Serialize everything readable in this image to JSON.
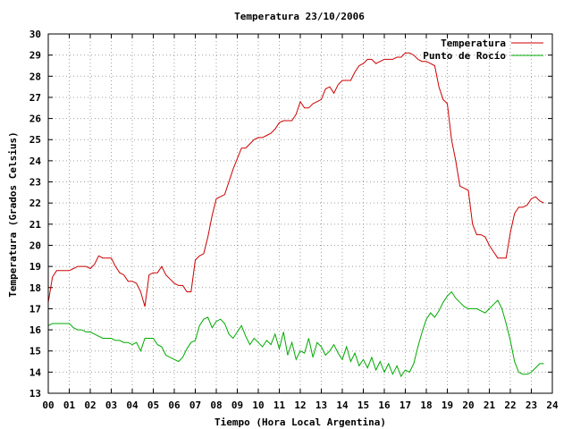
{
  "chart_data": {
    "type": "line",
    "title": "Temperatura 23/10/2006",
    "xlabel": "Tiempo (Hora Local Argentina)",
    "ylabel": "Temperatura (Grados Celsius)",
    "xlim": [
      0,
      24
    ],
    "ylim": [
      13,
      30
    ],
    "x_ticks": [
      "00",
      "01",
      "02",
      "03",
      "04",
      "05",
      "06",
      "07",
      "08",
      "09",
      "10",
      "11",
      "12",
      "13",
      "14",
      "15",
      "16",
      "17",
      "18",
      "19",
      "20",
      "21",
      "22",
      "23",
      "24"
    ],
    "y_ticks": [
      13,
      14,
      15,
      16,
      17,
      18,
      19,
      20,
      21,
      22,
      23,
      24,
      25,
      26,
      27,
      28,
      29,
      30
    ],
    "grid": true,
    "legend_position": "top-right",
    "series": [
      {
        "name": "Temperatura",
        "color": "#cc0000",
        "x": [
          0.0,
          0.2,
          0.4,
          0.6,
          0.8,
          1.0,
          1.2,
          1.4,
          1.6,
          1.8,
          2.0,
          2.2,
          2.4,
          2.6,
          2.8,
          3.0,
          3.2,
          3.4,
          3.6,
          3.8,
          4.0,
          4.2,
          4.4,
          4.6,
          4.8,
          5.0,
          5.2,
          5.4,
          5.6,
          5.8,
          6.0,
          6.2,
          6.4,
          6.6,
          6.8,
          7.0,
          7.2,
          7.4,
          7.6,
          7.8,
          8.0,
          8.2,
          8.4,
          8.6,
          8.8,
          9.0,
          9.2,
          9.4,
          9.6,
          9.8,
          10.0,
          10.2,
          10.4,
          10.6,
          10.8,
          11.0,
          11.2,
          11.4,
          11.6,
          11.8,
          12.0,
          12.2,
          12.4,
          12.6,
          12.8,
          13.0,
          13.2,
          13.4,
          13.6,
          13.8,
          14.0,
          14.2,
          14.4,
          14.6,
          14.8,
          15.0,
          15.2,
          15.4,
          15.6,
          15.8,
          16.0,
          16.2,
          16.4,
          16.6,
          16.8,
          17.0,
          17.2,
          17.4,
          17.6,
          17.8,
          18.0,
          18.2,
          18.4,
          18.6,
          18.8,
          19.0,
          19.2,
          19.4,
          19.6,
          19.8,
          20.0,
          20.2,
          20.4,
          20.6,
          20.8,
          21.0,
          21.2,
          21.4,
          21.6,
          21.8,
          22.0,
          22.2,
          22.4,
          22.6,
          22.8,
          23.0,
          23.2,
          23.4,
          23.6
        ],
        "values": [
          17.3,
          18.5,
          18.8,
          18.8,
          18.8,
          18.8,
          18.9,
          19.0,
          19.0,
          19.0,
          18.9,
          19.1,
          19.5,
          19.4,
          19.4,
          19.4,
          19.0,
          18.7,
          18.6,
          18.3,
          18.3,
          18.2,
          17.8,
          17.1,
          18.6,
          18.7,
          18.7,
          19.0,
          18.6,
          18.4,
          18.2,
          18.1,
          18.1,
          17.8,
          17.8,
          19.3,
          19.5,
          19.6,
          20.4,
          21.4,
          22.2,
          22.3,
          22.4,
          23.0,
          23.6,
          24.1,
          24.6,
          24.6,
          24.8,
          25.0,
          25.1,
          25.1,
          25.2,
          25.3,
          25.5,
          25.8,
          25.9,
          25.9,
          25.9,
          26.2,
          26.8,
          26.5,
          26.5,
          26.7,
          26.8,
          26.9,
          27.4,
          27.5,
          27.2,
          27.6,
          27.8,
          27.8,
          27.8,
          28.2,
          28.5,
          28.6,
          28.8,
          28.8,
          28.6,
          28.7,
          28.8,
          28.8,
          28.8,
          28.9,
          28.9,
          29.1,
          29.1,
          29.0,
          28.8,
          28.7,
          28.7,
          28.6,
          28.5,
          27.5,
          26.9,
          26.7,
          25.0,
          24.0,
          22.8,
          22.7,
          22.6,
          21.0,
          20.5,
          20.5,
          20.4,
          20.0,
          19.7,
          19.4,
          19.4,
          19.4,
          20.6,
          21.5,
          21.8,
          21.8,
          21.9,
          22.2,
          22.3,
          22.1,
          22.0
        ]
      },
      {
        "name": "Punto de Rocío",
        "color": "#00aa00",
        "x": [
          0.0,
          0.2,
          0.4,
          0.6,
          0.8,
          1.0,
          1.2,
          1.4,
          1.6,
          1.8,
          2.0,
          2.2,
          2.4,
          2.6,
          2.8,
          3.0,
          3.2,
          3.4,
          3.6,
          3.8,
          4.0,
          4.2,
          4.4,
          4.6,
          4.8,
          5.0,
          5.2,
          5.4,
          5.6,
          5.8,
          6.0,
          6.2,
          6.4,
          6.6,
          6.8,
          7.0,
          7.2,
          7.4,
          7.6,
          7.8,
          8.0,
          8.2,
          8.4,
          8.6,
          8.8,
          9.0,
          9.2,
          9.4,
          9.6,
          9.8,
          10.0,
          10.2,
          10.4,
          10.6,
          10.8,
          11.0,
          11.2,
          11.4,
          11.6,
          11.8,
          12.0,
          12.2,
          12.4,
          12.6,
          12.8,
          13.0,
          13.2,
          13.4,
          13.6,
          13.8,
          14.0,
          14.2,
          14.4,
          14.6,
          14.8,
          15.0,
          15.2,
          15.4,
          15.6,
          15.8,
          16.0,
          16.2,
          16.4,
          16.6,
          16.8,
          17.0,
          17.2,
          17.4,
          17.6,
          17.8,
          18.0,
          18.2,
          18.4,
          18.6,
          18.8,
          19.0,
          19.2,
          19.4,
          19.6,
          19.8,
          20.0,
          20.2,
          20.4,
          20.6,
          20.8,
          21.0,
          21.2,
          21.4,
          21.6,
          21.8,
          22.0,
          22.2,
          22.4,
          22.6,
          22.8,
          23.0,
          23.2,
          23.4,
          23.6
        ],
        "values": [
          16.2,
          16.3,
          16.3,
          16.3,
          16.3,
          16.3,
          16.1,
          16.0,
          16.0,
          15.9,
          15.9,
          15.8,
          15.7,
          15.6,
          15.6,
          15.6,
          15.5,
          15.5,
          15.4,
          15.4,
          15.3,
          15.4,
          15.0,
          15.6,
          15.6,
          15.6,
          15.3,
          15.2,
          14.8,
          14.7,
          14.6,
          14.5,
          14.7,
          15.1,
          15.4,
          15.5,
          16.2,
          16.5,
          16.6,
          16.1,
          16.4,
          16.5,
          16.3,
          15.8,
          15.6,
          15.9,
          16.2,
          15.7,
          15.3,
          15.6,
          15.4,
          15.2,
          15.5,
          15.3,
          15.8,
          15.1,
          15.9,
          14.8,
          15.4,
          14.6,
          15.0,
          14.9,
          15.6,
          14.7,
          15.4,
          15.2,
          14.8,
          15.0,
          15.3,
          14.9,
          14.6,
          15.2,
          14.5,
          14.9,
          14.3,
          14.6,
          14.2,
          14.7,
          14.1,
          14.5,
          14.0,
          14.4,
          13.9,
          14.3,
          13.8,
          14.1,
          14.0,
          14.4,
          15.2,
          15.9,
          16.5,
          16.8,
          16.6,
          16.9,
          17.3,
          17.6,
          17.8,
          17.5,
          17.3,
          17.1,
          17.0,
          17.0,
          17.0,
          16.9,
          16.8,
          17.0,
          17.2,
          17.4,
          17.0,
          16.3,
          15.5,
          14.5,
          14.0,
          13.9,
          13.9,
          14.0,
          14.2,
          14.4,
          14.4
        ]
      }
    ]
  }
}
